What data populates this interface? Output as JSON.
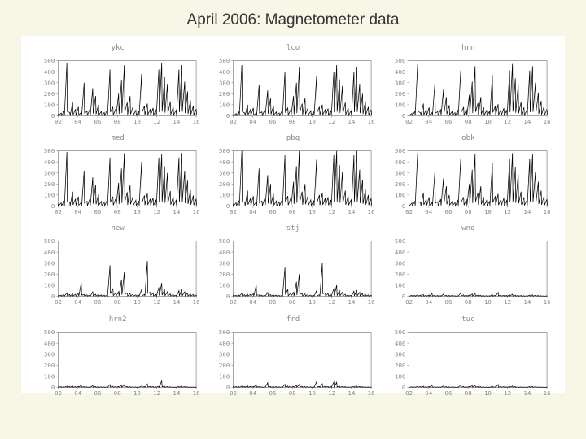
{
  "title": "April 2006: Magnetometer data",
  "background_color": "#f8f6e6",
  "panel_background": "#ffffff",
  "layout": {
    "rows": 4,
    "cols": 3,
    "gap_x": 14,
    "gap_y": 10
  },
  "axis": {
    "ylim": [
      0,
      500
    ],
    "yticks": [
      0,
      100,
      200,
      300,
      400,
      500
    ],
    "xlim": [
      2,
      16
    ],
    "xticks": [
      2,
      4,
      6,
      8,
      10,
      12,
      14,
      16
    ],
    "axis_color": "#888888",
    "grid_color": "#dddddd",
    "tick_fontsize": 7,
    "title_fontsize": 9,
    "dash_line_y": 500,
    "line_color": "#000000",
    "line_width": 0.7
  },
  "panels": [
    {
      "title": "ykc",
      "activity": "high",
      "data": [
        15,
        25,
        40,
        480,
        30,
        120,
        60,
        80,
        30,
        300,
        40,
        60,
        250,
        180,
        100,
        40,
        30,
        50,
        420,
        80,
        60,
        200,
        320,
        460,
        120,
        180,
        80,
        50,
        40,
        380,
        90,
        110,
        60,
        70,
        50,
        420,
        480,
        350,
        290,
        130,
        80,
        50,
        420,
        460,
        310,
        220,
        140,
        90,
        60
      ]
    },
    {
      "title": "lco",
      "activity": "high",
      "data": [
        10,
        20,
        35,
        460,
        25,
        100,
        55,
        70,
        25,
        280,
        35,
        55,
        230,
        160,
        90,
        35,
        25,
        45,
        400,
        70,
        55,
        180,
        300,
        440,
        110,
        160,
        70,
        45,
        35,
        360,
        80,
        100,
        55,
        65,
        45,
        400,
        460,
        330,
        270,
        120,
        70,
        45,
        400,
        440,
        290,
        200,
        130,
        80,
        55
      ]
    },
    {
      "title": "hrn",
      "activity": "high",
      "data": [
        12,
        22,
        38,
        470,
        28,
        110,
        58,
        75,
        28,
        290,
        38,
        58,
        240,
        170,
        95,
        38,
        28,
        48,
        410,
        75,
        58,
        190,
        310,
        450,
        115,
        170,
        75,
        48,
        38,
        370,
        85,
        105,
        58,
        68,
        48,
        410,
        470,
        340,
        280,
        125,
        75,
        48,
        410,
        450,
        300,
        210,
        135,
        85,
        58
      ]
    },
    {
      "title": "med",
      "activity": "high",
      "data": [
        18,
        28,
        42,
        490,
        32,
        130,
        65,
        85,
        32,
        320,
        42,
        65,
        260,
        190,
        105,
        42,
        32,
        52,
        440,
        85,
        65,
        210,
        340,
        480,
        125,
        190,
        85,
        52,
        42,
        400,
        95,
        115,
        65,
        75,
        52,
        440,
        470,
        360,
        300,
        135,
        85,
        52,
        440,
        480,
        320,
        230,
        145,
        95,
        65
      ]
    },
    {
      "title": "pbq",
      "activity": "high",
      "data": [
        20,
        30,
        45,
        500,
        35,
        140,
        70,
        90,
        35,
        340,
        45,
        70,
        280,
        200,
        110,
        45,
        35,
        55,
        460,
        90,
        70,
        220,
        360,
        500,
        130,
        200,
        90,
        55,
        45,
        420,
        100,
        120,
        70,
        80,
        55,
        460,
        500,
        370,
        310,
        140,
        90,
        55,
        460,
        500,
        330,
        240,
        150,
        100,
        70
      ]
    },
    {
      "title": "obk",
      "activity": "high",
      "data": [
        16,
        26,
        40,
        480,
        30,
        120,
        62,
        80,
        30,
        310,
        40,
        62,
        250,
        180,
        100,
        40,
        30,
        50,
        430,
        80,
        62,
        200,
        330,
        470,
        120,
        180,
        80,
        50,
        40,
        390,
        90,
        110,
        62,
        72,
        50,
        430,
        480,
        350,
        290,
        130,
        80,
        50,
        430,
        470,
        310,
        220,
        140,
        90,
        62
      ]
    },
    {
      "title": "new",
      "activity": "med",
      "data": [
        8,
        10,
        12,
        30,
        15,
        20,
        18,
        25,
        120,
        15,
        12,
        10,
        40,
        18,
        15,
        12,
        10,
        8,
        280,
        70,
        30,
        40,
        150,
        220,
        30,
        25,
        18,
        12,
        10,
        60,
        15,
        320,
        35,
        30,
        15,
        80,
        120,
        60,
        40,
        20,
        15,
        10,
        50,
        60,
        40,
        30,
        20,
        15,
        10
      ]
    },
    {
      "title": "stj",
      "activity": "med",
      "data": [
        6,
        8,
        10,
        25,
        12,
        18,
        15,
        22,
        100,
        12,
        10,
        8,
        35,
        15,
        12,
        10,
        8,
        6,
        260,
        60,
        25,
        35,
        130,
        200,
        25,
        22,
        15,
        10,
        8,
        50,
        12,
        300,
        30,
        25,
        12,
        70,
        100,
        50,
        35,
        18,
        12,
        8,
        45,
        55,
        35,
        25,
        18,
        12,
        8
      ]
    },
    {
      "title": "wnq",
      "activity": "low",
      "data": [
        5,
        8,
        6,
        12,
        10,
        15,
        8,
        10,
        25,
        7,
        6,
        5,
        18,
        8,
        7,
        6,
        5,
        4,
        30,
        12,
        8,
        10,
        20,
        28,
        10,
        8,
        6,
        5,
        4,
        15,
        7,
        35,
        10,
        8,
        6,
        12,
        18,
        10,
        8,
        6,
        5,
        4,
        10,
        12,
        8,
        6,
        5,
        4,
        3
      ]
    },
    {
      "title": "hrn2",
      "activity": "low",
      "data": [
        4,
        6,
        5,
        10,
        8,
        12,
        6,
        8,
        20,
        6,
        5,
        4,
        15,
        7,
        6,
        5,
        4,
        3,
        25,
        10,
        7,
        8,
        18,
        24,
        8,
        7,
        5,
        4,
        3,
        12,
        6,
        30,
        8,
        7,
        5,
        10,
        60,
        10,
        7,
        5,
        4,
        3,
        8,
        10,
        7,
        5,
        4,
        3,
        2
      ]
    },
    {
      "title": "frd",
      "activity": "low",
      "data": [
        5,
        7,
        6,
        11,
        9,
        14,
        7,
        9,
        22,
        6,
        5,
        4,
        42,
        8,
        7,
        6,
        5,
        4,
        28,
        11,
        8,
        9,
        19,
        26,
        9,
        8,
        6,
        5,
        4,
        52,
        7,
        32,
        9,
        8,
        6,
        48,
        45,
        10,
        8,
        6,
        5,
        4,
        9,
        11,
        8,
        6,
        5,
        4,
        3
      ]
    },
    {
      "title": "tuc",
      "activity": "low",
      "data": [
        3,
        5,
        4,
        9,
        7,
        11,
        5,
        7,
        18,
        5,
        4,
        3,
        12,
        6,
        5,
        4,
        3,
        2,
        22,
        8,
        5,
        7,
        15,
        20,
        7,
        6,
        4,
        3,
        2,
        10,
        5,
        26,
        7,
        6,
        4,
        8,
        12,
        7,
        5,
        4,
        3,
        2,
        7,
        8,
        5,
        4,
        3,
        2,
        2
      ]
    }
  ]
}
